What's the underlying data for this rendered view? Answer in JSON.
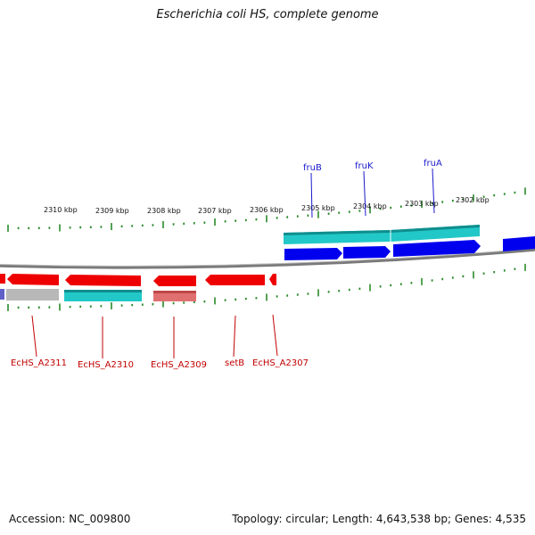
{
  "title": "Escherichia coli HS, complete genome",
  "colors": {
    "backbone": "#7a7a7a",
    "forward_cds": "#0000ee",
    "reverse_cds": "#ee0000",
    "cyan_band": "#22c8c8",
    "gray_band": "#b8b8b8",
    "pink_band": "#e07070",
    "tick": "#2a8a2a",
    "top_label": "#1a1acc",
    "bottom_label": "#c20000"
  },
  "scale_labels": [
    "2310 kbp",
    "2309 kbp",
    "2308 kbp",
    "2307 kbp",
    "2306 kbp",
    "2305 kbp",
    "2304 kbp",
    "2303 kbp",
    "2302 kbp"
  ],
  "top_genes": [
    "fruB",
    "fruK",
    "fruA"
  ],
  "bottom_genes": [
    "EcHS_A2311",
    "EcHS_A2310",
    "EcHS_A2309",
    "setB",
    "EcHS_A2307"
  ],
  "footer": {
    "accession": "Accession: NC_009800",
    "summary": "Topology: circular; Length: 4,643,538 bp; Genes: 4,535"
  }
}
